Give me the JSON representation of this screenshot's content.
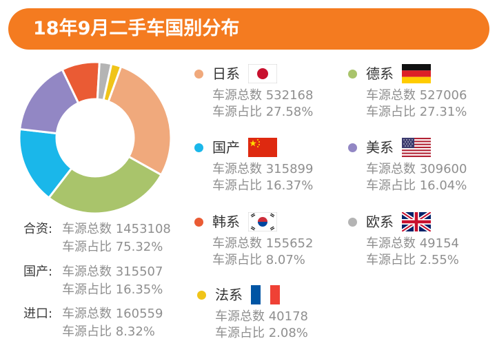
{
  "header": {
    "title": "18年9月二手车国别分布"
  },
  "chart_data": {
    "type": "pie",
    "hole": true,
    "slices": [
      {
        "label": "日系",
        "count": 532168,
        "percent": 27.58,
        "color": "#f0a97c"
      },
      {
        "label": "德系",
        "count": 527006,
        "percent": 27.31,
        "color": "#a9c46b"
      },
      {
        "label": "国产",
        "count": 315899,
        "percent": 16.37,
        "color": "#1ab7ea"
      },
      {
        "label": "美系",
        "count": 309600,
        "percent": 16.04,
        "color": "#9287c4"
      },
      {
        "label": "韩系",
        "count": 155652,
        "percent": 8.07,
        "color": "#ea5b34"
      },
      {
        "label": "欧系",
        "count": 49154,
        "percent": 2.55,
        "color": "#b4b4b4"
      },
      {
        "label": "法系",
        "count": 40178,
        "percent": 2.08,
        "color": "#f0c419"
      }
    ]
  },
  "summary": [
    {
      "cat": "合资:",
      "line1": "车源总数 1453108",
      "line2": "车源占比 75.32%"
    },
    {
      "cat": "国产:",
      "line1": "车源总数 315507",
      "line2": "车源占比 16.35%"
    },
    {
      "cat": "进口:",
      "line1": "车源总数 160559",
      "line2": "车源占比 8.32%"
    }
  ],
  "countries": [
    {
      "name": "日系",
      "flag": "japan-flag-icon",
      "count_text": "车源总数 532168",
      "percent_text": "车源占比 27.58%",
      "color": "#f0a97c"
    },
    {
      "name": "德系",
      "flag": "germany-flag-icon",
      "count_text": "车源总数 527006",
      "percent_text": "车源占比 27.31%",
      "color": "#a9c46b"
    },
    {
      "name": "国产",
      "flag": "china-flag-icon",
      "count_text": "车源总数 315899",
      "percent_text": "车源占比 16.37%",
      "color": "#1ab7ea"
    },
    {
      "name": "美系",
      "flag": "usa-flag-icon",
      "count_text": "车源总数 309600",
      "percent_text": "车源占比 16.04%",
      "color": "#9287c4"
    },
    {
      "name": "韩系",
      "flag": "korea-flag-icon",
      "count_text": "车源总数 155652",
      "percent_text": "车源占比 8.07%",
      "color": "#ea5b34"
    },
    {
      "name": "欧系",
      "flag": "uk-flag-icon",
      "count_text": "车源总数 49154",
      "percent_text": "车源占比 2.55%",
      "color": "#b4b4b4"
    },
    {
      "name": "法系",
      "flag": "france-flag-icon",
      "count_text": "车源总数 40178",
      "percent_text": "车源占比 2.08%",
      "color": "#f0c419"
    }
  ]
}
